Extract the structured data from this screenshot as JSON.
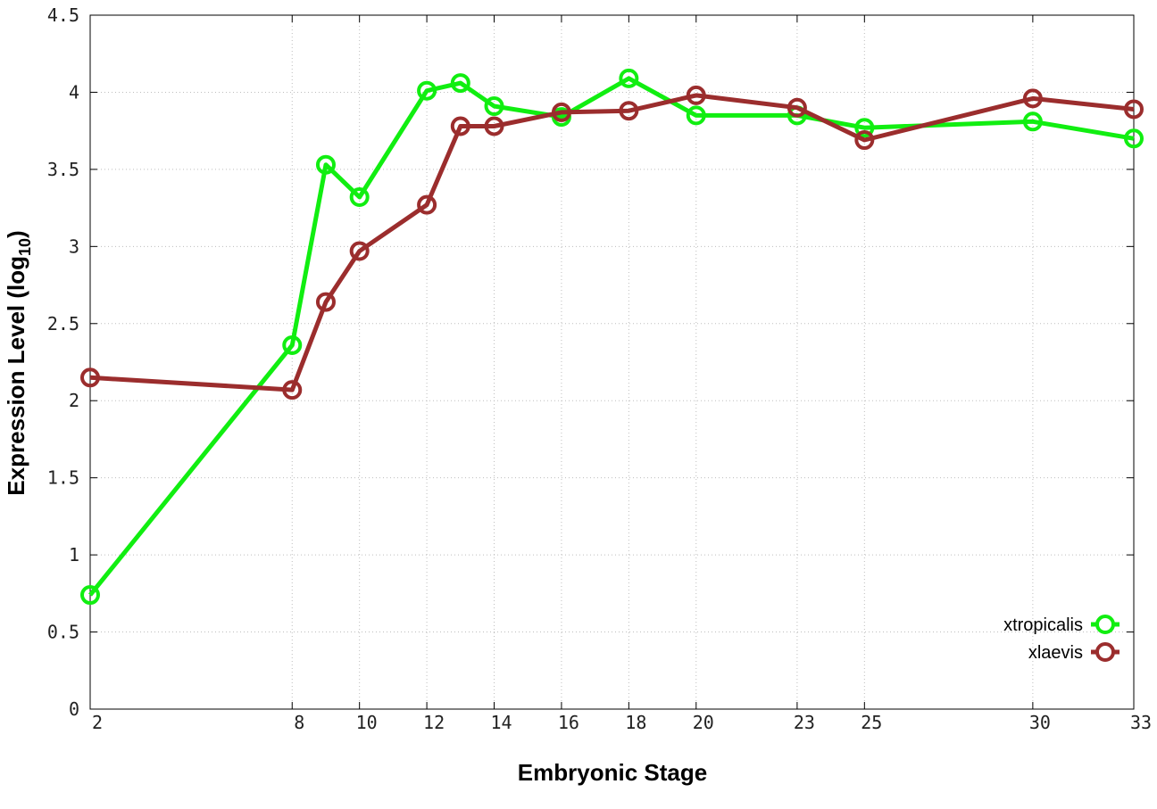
{
  "chart_data": {
    "type": "line",
    "xlabel": "Embryonic Stage",
    "ylabel_main": "Expression Level (log",
    "ylabel_sub": "10",
    "ylabel_close": ")",
    "xlim": [
      2,
      33
    ],
    "ylim": [
      0,
      4.5
    ],
    "grid": true,
    "legend_position": "bottom-right",
    "x_ticks": [
      2,
      8,
      10,
      12,
      14,
      16,
      18,
      20,
      23,
      25,
      30,
      33
    ],
    "x_tick_labels": [
      "2",
      "8",
      "10",
      "12",
      "14",
      "16",
      "18",
      "20",
      "23",
      "25",
      "30",
      "33"
    ],
    "y_ticks": [
      0,
      0.5,
      1,
      1.5,
      2,
      2.5,
      3,
      3.5,
      4,
      4.5
    ],
    "y_tick_labels": [
      "0",
      "0.5",
      "1",
      "1.5",
      "2",
      "2.5",
      "3",
      "3.5",
      "4",
      "4.5"
    ],
    "series": [
      {
        "name": "xtropicalis",
        "color": "#11ee11",
        "x": [
          2,
          8,
          9,
          10,
          12,
          13,
          14,
          16,
          18,
          20,
          23,
          25,
          30,
          33
        ],
        "y": [
          0.74,
          2.36,
          3.53,
          3.32,
          4.01,
          4.06,
          3.91,
          3.84,
          4.09,
          3.85,
          3.85,
          3.77,
          3.81,
          3.7
        ]
      },
      {
        "name": "xlaevis",
        "color": "#9b2d2d",
        "x": [
          2,
          8,
          9,
          10,
          12,
          13,
          14,
          16,
          18,
          20,
          23,
          25,
          30,
          33
        ],
        "y": [
          2.15,
          2.07,
          2.64,
          2.97,
          3.27,
          3.78,
          3.78,
          3.87,
          3.88,
          3.98,
          3.9,
          3.69,
          3.96,
          3.89
        ]
      }
    ]
  }
}
